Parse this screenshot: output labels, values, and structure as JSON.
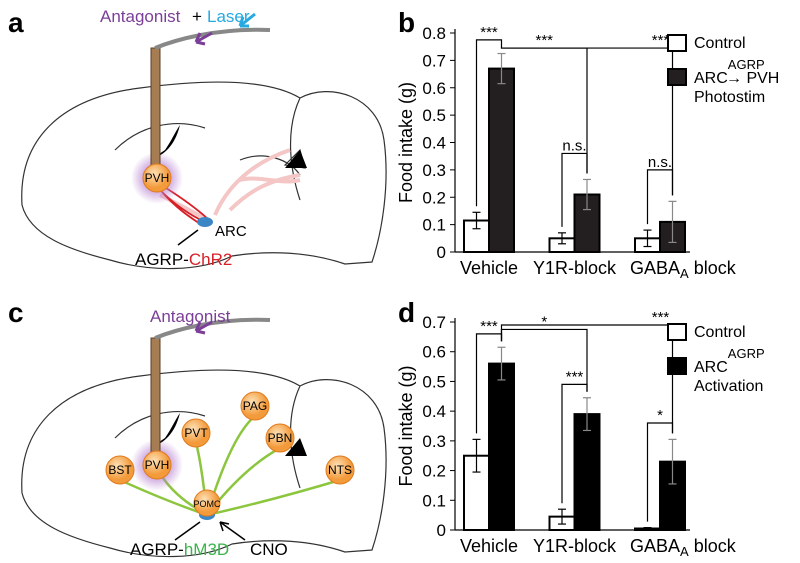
{
  "panels": [
    {
      "letter": "a",
      "antagonist": "Antagonist",
      "plus": "+",
      "laser": "Laser",
      "nodes": [
        "PVH"
      ],
      "arc": "ARC",
      "construct": "AGRP-",
      "construct_gene": "ChR2"
    },
    {
      "letter": "c",
      "antagonist": "Antagonist",
      "nodes": [
        "BST",
        "PVH",
        "PVT",
        "PAG",
        "PBN",
        "NTS",
        "POMC"
      ],
      "construct": "AGRP-",
      "construct_gene": "hM3D",
      "cno": "CNO"
    }
  ],
  "chart_data": [
    {
      "letter": "b",
      "type": "bar",
      "ylabel": "Food intake (g)",
      "categories": [
        "Vehicle",
        "Y1R-block",
        {
          "base": "GABA",
          "sub": "A",
          "rest": " block"
        }
      ],
      "ylim": [
        0,
        0.8
      ],
      "yticks": [
        0,
        0.1,
        0.2,
        0.3,
        0.4,
        0.5,
        0.6,
        0.7,
        0.8
      ],
      "series": [
        {
          "name": "Control",
          "color": "#ffffff",
          "values": [
            0.115,
            0.05,
            0.05
          ],
          "errors": [
            0.03,
            0.02,
            0.03
          ]
        },
        {
          "name": {
            "base": "ARC",
            "sup": "AGRP",
            "rest": "→ PVH",
            "line2": "Photostim"
          },
          "color": "#231f20",
          "values": [
            0.67,
            0.21,
            0.11
          ],
          "errors": [
            0.055,
            0.055,
            0.075
          ]
        }
      ],
      "annotations": [
        "***",
        "***",
        "***",
        "n.s.",
        "n.s."
      ]
    },
    {
      "letter": "d",
      "type": "bar",
      "ylabel": "Food intake (g)",
      "categories": [
        "Vehicle",
        "Y1R-block",
        {
          "base": "GABA",
          "sub": "A",
          "rest": " block"
        }
      ],
      "ylim": [
        0,
        0.7
      ],
      "yticks": [
        0,
        0.1,
        0.2,
        0.3,
        0.4,
        0.5,
        0.6,
        0.7
      ],
      "series": [
        {
          "name": "Control",
          "color": "#ffffff",
          "values": [
            0.25,
            0.045,
            0.005
          ],
          "errors": [
            0.055,
            0.025,
            0.003
          ]
        },
        {
          "name": {
            "base": "ARC",
            "sup": "AGRP",
            "line2": "Activation"
          },
          "color": "#000000",
          "values": [
            0.56,
            0.39,
            0.23
          ],
          "errors": [
            0.055,
            0.055,
            0.075
          ]
        }
      ],
      "annotations": [
        "***",
        "*",
        "***",
        "***",
        "*"
      ]
    }
  ]
}
